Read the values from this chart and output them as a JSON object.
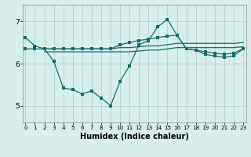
{
  "xlabel": "Humidex (Indice chaleur)",
  "x_ticks": [
    0,
    1,
    2,
    3,
    4,
    5,
    6,
    7,
    8,
    9,
    10,
    11,
    12,
    13,
    14,
    15,
    16,
    17,
    18,
    19,
    20,
    21,
    22,
    23
  ],
  "ylim": [
    4.6,
    7.4
  ],
  "xlim": [
    -0.3,
    23.3
  ],
  "yticks": [
    5,
    6,
    7
  ],
  "bg_color": "#d8eeed",
  "grid_color": "#b8d4d4",
  "line_color": "#1a6b6b",
  "line_main_x": [
    0,
    1,
    2,
    3,
    4,
    5,
    6,
    7,
    8,
    9,
    10,
    11,
    12,
    13,
    14,
    15,
    16,
    17,
    18,
    19,
    20,
    21,
    22,
    23
  ],
  "line_main_y": [
    6.62,
    6.42,
    6.35,
    6.05,
    5.42,
    5.38,
    5.28,
    5.35,
    5.18,
    5.0,
    5.58,
    5.95,
    6.45,
    6.55,
    6.88,
    7.05,
    6.68,
    6.35,
    6.32,
    6.22,
    6.18,
    6.15,
    6.18,
    6.35
  ],
  "line_flat1_x": [
    2,
    3,
    4,
    5,
    6,
    7,
    8,
    9,
    10,
    11,
    12,
    13,
    14,
    15,
    16,
    17,
    18,
    19,
    20,
    21,
    22,
    23
  ],
  "line_flat1_y": [
    6.35,
    6.35,
    6.35,
    6.35,
    6.35,
    6.35,
    6.35,
    6.35,
    6.38,
    6.38,
    6.4,
    6.42,
    6.42,
    6.45,
    6.48,
    6.48,
    6.48,
    6.48,
    6.48,
    6.48,
    6.48,
    6.5
  ],
  "line_flat2_x": [
    2,
    3,
    4,
    5,
    6,
    7,
    8,
    9,
    10,
    11,
    12,
    13,
    14,
    15,
    16,
    17,
    18,
    19,
    20,
    21,
    22,
    23
  ],
  "line_flat2_y": [
    6.28,
    6.28,
    6.28,
    6.28,
    6.28,
    6.28,
    6.28,
    6.28,
    6.28,
    6.28,
    6.3,
    6.32,
    6.32,
    6.35,
    6.38,
    6.38,
    6.38,
    6.38,
    6.38,
    6.38,
    6.38,
    6.4
  ],
  "line_upper_x": [
    0,
    1,
    2,
    3,
    4,
    5,
    6,
    7,
    8,
    9,
    10,
    11,
    12,
    13,
    14,
    15,
    16,
    17,
    18,
    19,
    20,
    21,
    22,
    23
  ],
  "line_upper_y": [
    6.35,
    6.35,
    6.35,
    6.35,
    6.35,
    6.35,
    6.35,
    6.35,
    6.35,
    6.35,
    6.45,
    6.5,
    6.55,
    6.58,
    6.62,
    6.65,
    6.68,
    6.35,
    6.32,
    6.28,
    6.25,
    6.22,
    6.25,
    6.35
  ]
}
